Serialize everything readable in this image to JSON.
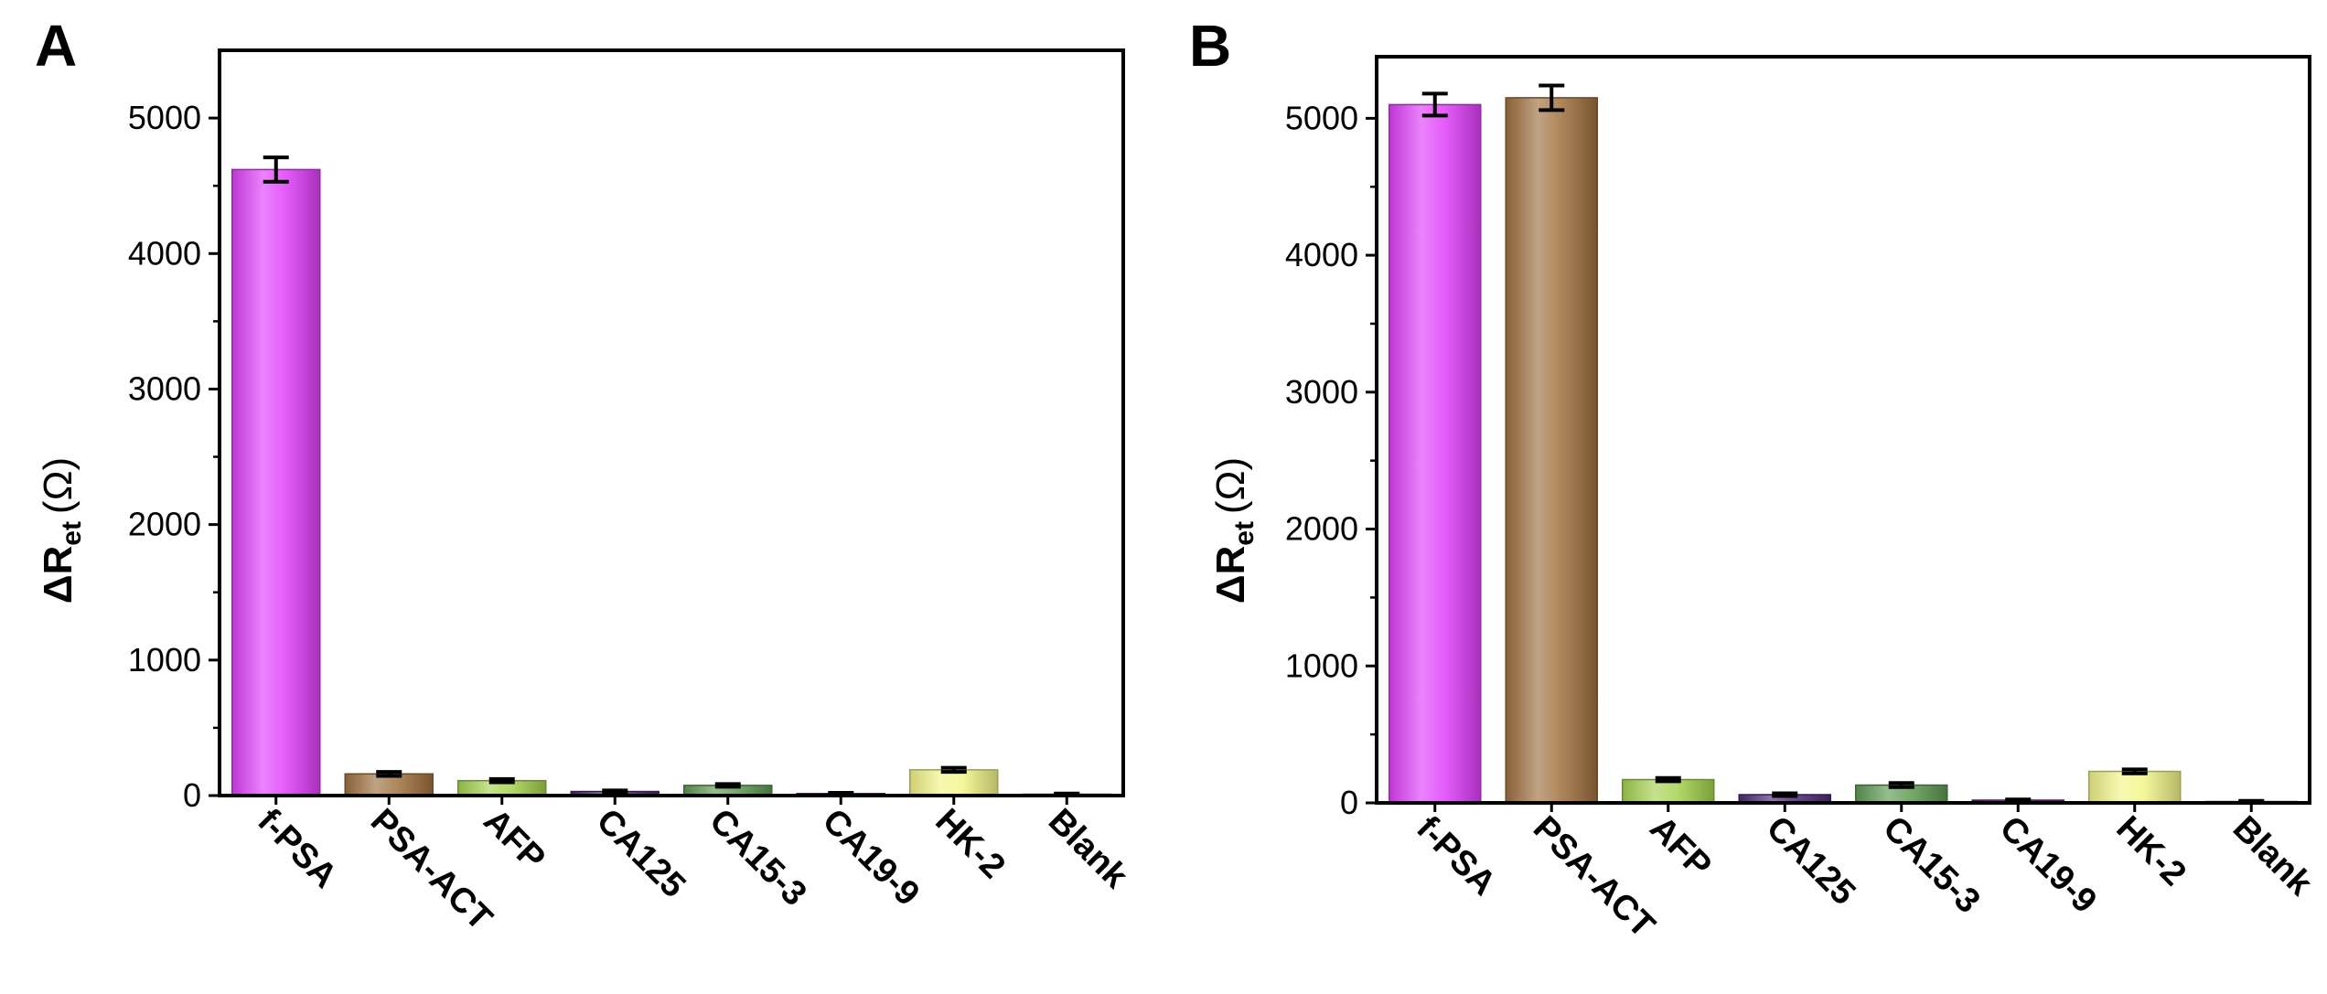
{
  "chart_data": [
    {
      "type": "bar",
      "panel_label": "A",
      "categories": [
        "f-PSA",
        "PSA-ACT",
        "AFP",
        "CA125",
        "CA15-3",
        "CA19-9",
        "HK-2",
        "Blank"
      ],
      "values": [
        4620,
        160,
        110,
        30,
        75,
        15,
        190,
        10
      ],
      "errors": [
        90,
        15,
        12,
        8,
        10,
        5,
        15,
        5
      ],
      "colors": [
        "#e040fb",
        "#a0713f",
        "#a5d24f",
        "#4e2a78",
        "#5f9a52",
        "#7a1f95",
        "#f3f589",
        "#7a6b8f"
      ],
      "ylabel_main": "ΔR",
      "ylabel_sub": "et",
      "ylabel_unit": "(Ω)",
      "yticks": [
        "0",
        "1000",
        "2000",
        "3000",
        "4000",
        "5000"
      ],
      "ylim": [
        0,
        5500
      ]
    },
    {
      "type": "bar",
      "panel_label": "B",
      "categories": [
        "f-PSA",
        "PSA-ACT",
        "AFP",
        "CA125",
        "CA15-3",
        "CA19-9",
        "HK-2",
        "Blank"
      ],
      "values": [
        5100,
        5150,
        170,
        60,
        130,
        20,
        230,
        10
      ],
      "errors": [
        80,
        90,
        12,
        10,
        15,
        5,
        15,
        5
      ],
      "colors": [
        "#e040fb",
        "#a0713f",
        "#a5d24f",
        "#4e2a78",
        "#5f9a52",
        "#7a1f95",
        "#f3f589",
        "#7a6b8f"
      ],
      "ylabel_main": "ΔR",
      "ylabel_sub": "et",
      "ylabel_unit": "(Ω)",
      "yticks": [
        "0",
        "1000",
        "2000",
        "3000",
        "4000",
        "5000"
      ],
      "ylim": [
        0,
        5450
      ]
    }
  ]
}
